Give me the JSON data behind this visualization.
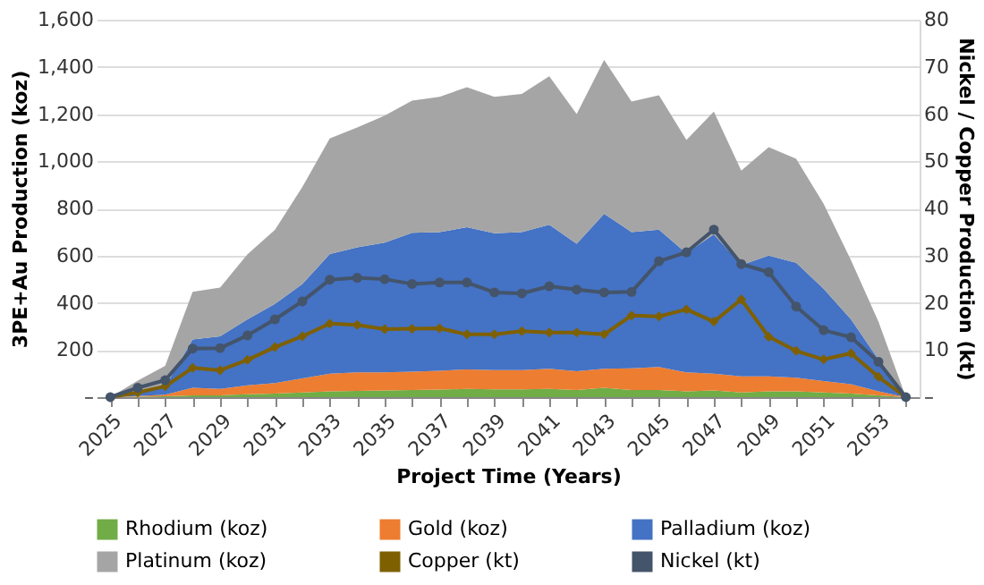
{
  "chart_data": {
    "type": "area",
    "stacked": true,
    "xlabel": "Project Time (Years)",
    "ylabel": "3PE+Au Production (koz)",
    "y2label": "Nickel / Copper Production (kt)",
    "categories": [
      "2025",
      null,
      "2027",
      null,
      "2029",
      null,
      "2031",
      null,
      "2033",
      null,
      "2035",
      null,
      "2037",
      null,
      "2039",
      null,
      "2041",
      null,
      "2043",
      null,
      "2045",
      null,
      "2047",
      null,
      "2049",
      null,
      "2051",
      null,
      "2053",
      null
    ],
    "series": [
      {
        "name": "Rhodium (koz)",
        "color": "#70ad47",
        "values": [
          0,
          2,
          4,
          8,
          8,
          12,
          15,
          20,
          25,
          27,
          28,
          30,
          32,
          35,
          33,
          33,
          35,
          30,
          40,
          30,
          30,
          25,
          28,
          20,
          25,
          25,
          20,
          15,
          8,
          0
        ]
      },
      {
        "name": "Gold (koz)",
        "color": "#ed7d31",
        "values": [
          0,
          3,
          6,
          32,
          27,
          38,
          45,
          60,
          75,
          78,
          77,
          78,
          80,
          83,
          82,
          82,
          85,
          80,
          80,
          92,
          98,
          80,
          72,
          68,
          63,
          57,
          48,
          40,
          17,
          0
        ]
      },
      {
        "name": "Palladium (koz)",
        "color": "#4472c4",
        "values": [
          0,
          20,
          35,
          205,
          223,
          280,
          335,
          400,
          507,
          530,
          550,
          589,
          588,
          602,
          580,
          585,
          611,
          540,
          657,
          578,
          582,
          505,
          590,
          472,
          512,
          488,
          392,
          275,
          135,
          0
        ]
      },
      {
        "name": "Platinum (koz)",
        "color": "#a5a5a5",
        "values": [
          0,
          45,
          88,
          201,
          206,
          276,
          314,
          411,
          490,
          508,
          538,
          560,
          573,
          594,
          578,
          585,
          629,
          550,
          652,
          553,
          570,
          480,
          520,
          400,
          460,
          440,
          360,
          250,
          160,
          0
        ]
      },
      {
        "name": "Copper (kt)",
        "type": "line",
        "axis": "y2",
        "marker": "diamond",
        "color": "#7f6000",
        "values": [
          0,
          1,
          2.3,
          6.2,
          5.7,
          7.9,
          10.6,
          12.9,
          15.6,
          15.3,
          14.4,
          14.5,
          14.6,
          13.3,
          13.3,
          14,
          13.7,
          13.7,
          13.3,
          17.3,
          17.1,
          18.6,
          16,
          20.7,
          12.8,
          9.8,
          8,
          9.3,
          4.3,
          0
        ]
      },
      {
        "name": "Nickel (kt)",
        "type": "line",
        "axis": "y2",
        "marker": "circle",
        "color": "#44546a",
        "values": [
          0,
          2,
          3.6,
          10.3,
          10.4,
          13.1,
          16.5,
          20.3,
          24.9,
          25.3,
          25,
          24,
          24.3,
          24.3,
          22.2,
          22,
          23.5,
          22.8,
          22.2,
          22.3,
          28.8,
          30.7,
          35.5,
          28.2,
          26.5,
          19.2,
          14.2,
          12.7,
          7.5,
          0
        ]
      }
    ],
    "ylim": [
      0,
      1600
    ],
    "yticks": [
      {
        "value": 0,
        "label": "–"
      },
      200,
      400,
      600,
      800,
      {
        "value": 1000,
        "label": "1,000"
      },
      {
        "value": 1200,
        "label": "1,200"
      },
      {
        "value": 1400,
        "label": "1,400"
      },
      {
        "value": 1600,
        "label": "1,600"
      }
    ],
    "y2lim": [
      0,
      80
    ],
    "y2ticks": [
      {
        "value": 0,
        "label": "–"
      },
      10,
      20,
      30,
      40,
      50,
      60,
      70,
      80
    ],
    "grid": "y",
    "legend": "bottom"
  }
}
